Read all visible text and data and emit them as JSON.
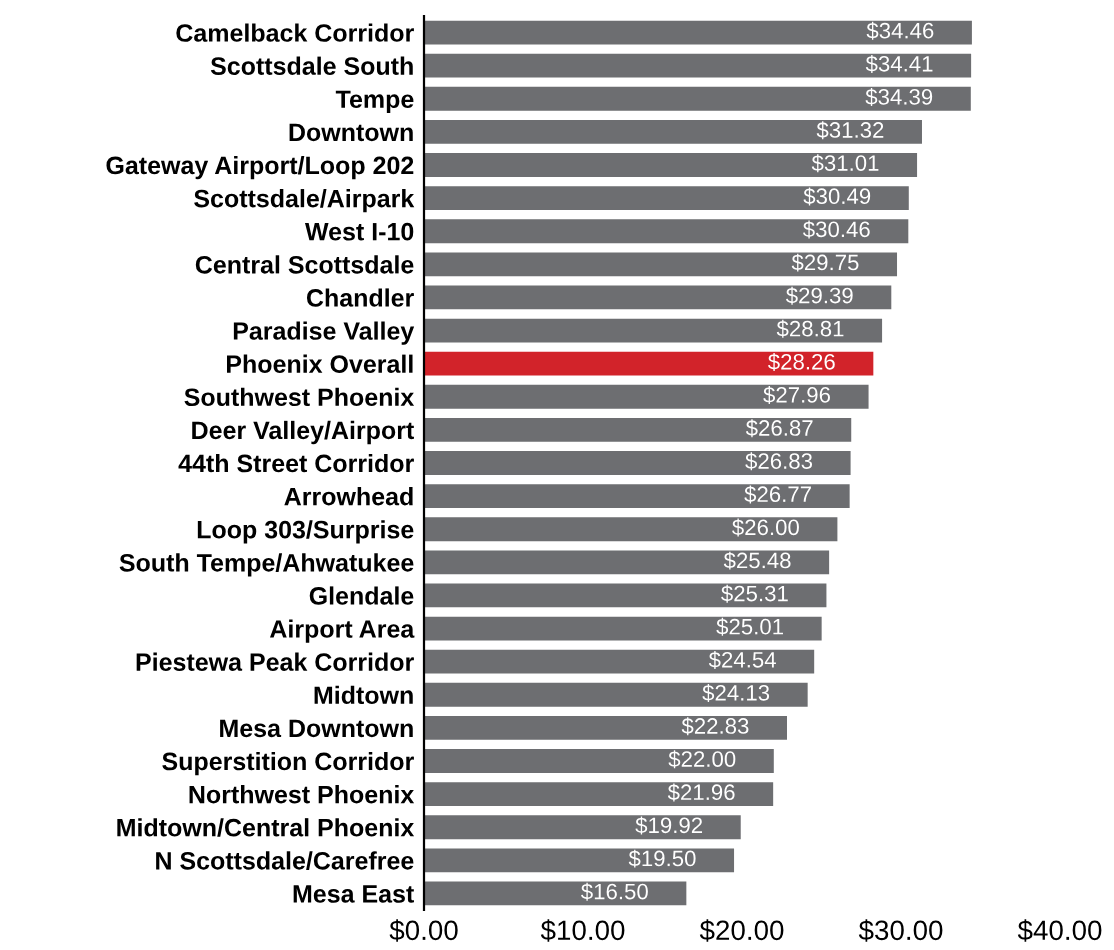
{
  "chart_data": {
    "type": "bar",
    "orientation": "horizontal",
    "categories": [
      "Camelback Corridor",
      "Scottsdale South",
      "Tempe",
      "Downtown",
      "Gateway Airport/Loop 202",
      "Scottsdale/Airpark",
      "West I-10",
      "Central Scottsdale",
      "Chandler",
      "Paradise Valley",
      "Phoenix Overall",
      "Southwest Phoenix",
      "Deer Valley/Airport",
      "44th Street Corridor",
      "Arrowhead",
      "Loop 303/Surprise",
      "South Tempe/Ahwatukee",
      "Glendale",
      "Airport Area",
      "Piestewa Peak Corridor",
      "Midtown",
      "Mesa Downtown",
      "Superstition Corridor",
      "Northwest Phoenix",
      "Midtown/Central Phoenix",
      "N Scottsdale/Carefree",
      "Mesa East"
    ],
    "values": [
      34.46,
      34.41,
      34.39,
      31.32,
      31.01,
      30.49,
      30.46,
      29.75,
      29.39,
      28.81,
      28.26,
      27.96,
      26.87,
      26.83,
      26.77,
      26.0,
      25.48,
      25.31,
      25.01,
      24.54,
      24.13,
      22.83,
      22.0,
      21.96,
      19.92,
      19.5,
      16.5
    ],
    "value_labels": [
      "$34.46",
      "$34.41",
      "$34.39",
      "$31.32",
      "$31.01",
      "$30.49",
      "$30.46",
      "$29.75",
      "$29.39",
      "$28.81",
      "$28.26",
      "$27.96",
      "$26.87",
      "$26.83",
      "$26.77",
      "$26.00",
      "$25.48",
      "$25.31",
      "$25.01",
      "$24.54",
      "$24.13",
      "$22.83",
      "$22.00",
      "$21.96",
      "$19.92",
      "$19.50",
      "$16.50"
    ],
    "colors": [
      "#6d6e71",
      "#6d6e71",
      "#6d6e71",
      "#6d6e71",
      "#6d6e71",
      "#6d6e71",
      "#6d6e71",
      "#6d6e71",
      "#6d6e71",
      "#6d6e71",
      "#d2232a",
      "#6d6e71",
      "#6d6e71",
      "#6d6e71",
      "#6d6e71",
      "#6d6e71",
      "#6d6e71",
      "#6d6e71",
      "#6d6e71",
      "#6d6e71",
      "#6d6e71",
      "#6d6e71",
      "#6d6e71",
      "#6d6e71",
      "#6d6e71",
      "#6d6e71",
      "#6d6e71"
    ],
    "xlim": [
      0,
      40
    ],
    "xticks": [
      {
        "value": 0,
        "label": "$0.00"
      },
      {
        "value": 10,
        "label": "$10.00"
      },
      {
        "value": 20,
        "label": "$20.00"
      },
      {
        "value": 30,
        "label": "$30.00"
      },
      {
        "value": 40,
        "label": "$40.00"
      }
    ],
    "grid": false,
    "legend": false
  }
}
